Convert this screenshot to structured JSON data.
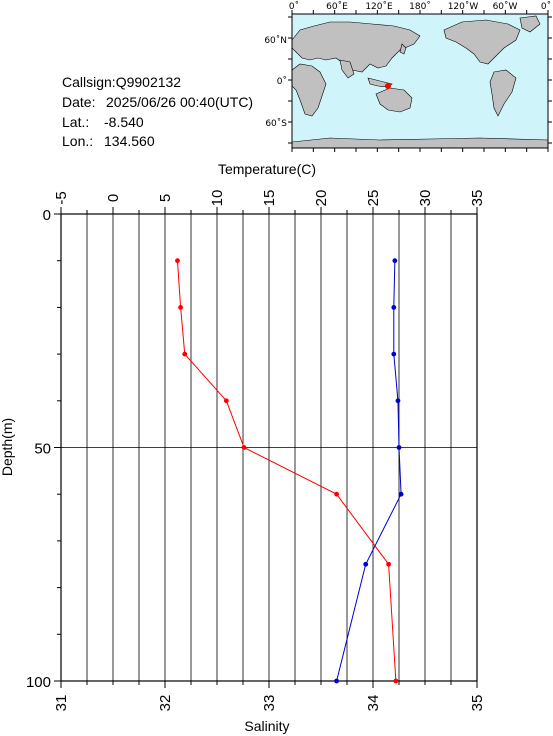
{
  "info": {
    "callsign": "Callsign:Q9902132",
    "date_label": "Date:",
    "date_value": "2025/06/26 00:40(UTC)",
    "lat_label": "Lat.:",
    "lat_value": "-8.540",
    "lon_label": "Lon.:",
    "lon_value": "134.560"
  },
  "map": {
    "top_labels": [
      "0˚",
      "60˚E",
      "120˚E",
      "180˚",
      "120˚W",
      "60˚W",
      "0˚"
    ],
    "left_labels": [
      "60˚N",
      "0˚",
      "60˚S"
    ],
    "ocean_color": "#cff5fb",
    "land_color": "#c0c0c0",
    "marker_color": "#ff0000",
    "marker_lat": -8.54,
    "marker_lon": 134.56
  },
  "chart_data": {
    "type": "line",
    "ylabel": "Depth(m)",
    "ylim": [
      100,
      0
    ],
    "y_ticks": [
      0,
      50,
      100
    ],
    "top_axis": {
      "label": "Temperature(C)",
      "range": [
        -5,
        35
      ],
      "ticks": [
        -5,
        0,
        5,
        10,
        15,
        20,
        25,
        30,
        35
      ]
    },
    "bottom_axis": {
      "label": "Salinity",
      "range": [
        31,
        35
      ],
      "ticks": [
        31,
        32,
        33,
        34,
        35
      ]
    },
    "grid": true,
    "series": [
      {
        "axis": "top",
        "color": "#ff0000",
        "points": [
          {
            "depth": 10,
            "value": 6.2
          },
          {
            "depth": 20,
            "value": 6.5
          },
          {
            "depth": 30,
            "value": 6.9
          },
          {
            "depth": 40,
            "value": 10.9
          },
          {
            "depth": 50,
            "value": 12.6
          },
          {
            "depth": 60,
            "value": 21.5
          },
          {
            "depth": 75,
            "value": 26.5
          },
          {
            "depth": 100,
            "value": 27.2
          }
        ]
      },
      {
        "axis": "bottom",
        "color": "#0000cc",
        "points": [
          {
            "depth": 10,
            "value": 34.21
          },
          {
            "depth": 20,
            "value": 34.2
          },
          {
            "depth": 30,
            "value": 34.2
          },
          {
            "depth": 40,
            "value": 34.24
          },
          {
            "depth": 50,
            "value": 34.25
          },
          {
            "depth": 60,
            "value": 34.27
          },
          {
            "depth": 75,
            "value": 33.93
          },
          {
            "depth": 100,
            "value": 33.65
          }
        ]
      }
    ]
  }
}
